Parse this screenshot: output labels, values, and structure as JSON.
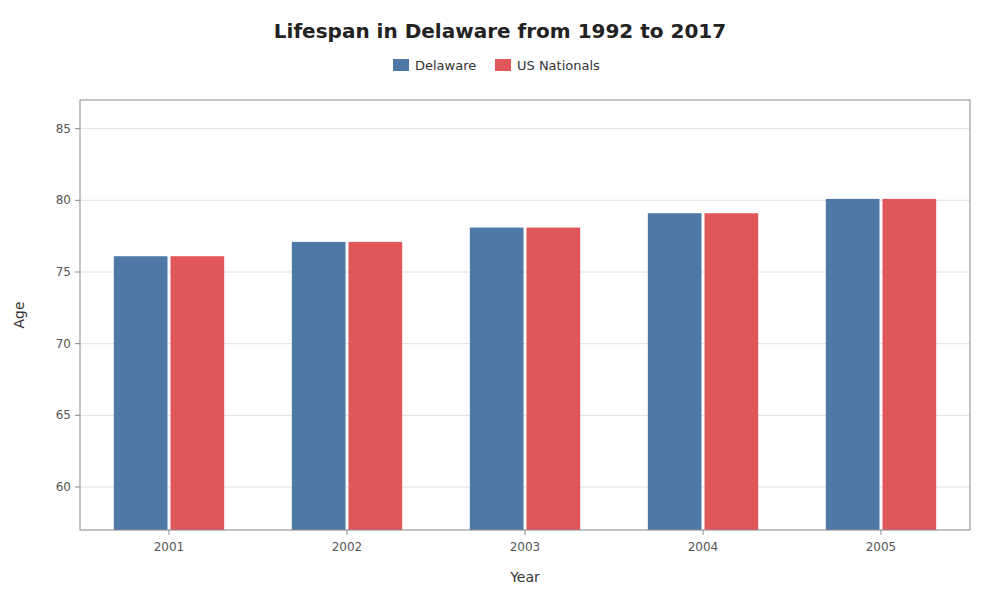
{
  "chart_data": {
    "type": "bar",
    "title": "Lifespan in Delaware from 1992 to 2017",
    "xlabel": "Year",
    "ylabel": "Age",
    "categories": [
      "2001",
      "2002",
      "2003",
      "2004",
      "2005"
    ],
    "series": [
      {
        "name": "Delaware",
        "color": "#4e79a7",
        "values": [
          76.1,
          77.1,
          78.1,
          79.1,
          80.1
        ]
      },
      {
        "name": "US Nationals",
        "color": "#e15759",
        "values": [
          76.1,
          77.1,
          78.1,
          79.1,
          80.1
        ]
      }
    ],
    "ylim": [
      57,
      87
    ],
    "yticks": [
      60,
      65,
      70,
      75,
      80,
      85
    ],
    "grid": true,
    "legend": "top"
  }
}
